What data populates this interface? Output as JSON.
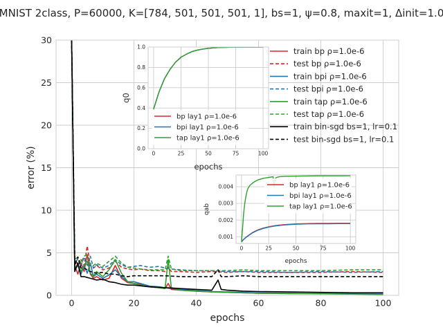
{
  "chart_data": [
    {
      "type": "line",
      "title": "MNIST 2class, P=60000, K=[784, 501, 501, 501, 1], bs=1, ψ=0.8, maxit=1, Δinit=1.0",
      "xlabel": "epochs",
      "ylabel": "error (%)",
      "xlim": [
        -5,
        105
      ],
      "ylim": [
        0,
        30
      ],
      "xticks": [
        "0",
        "20",
        "40",
        "60",
        "80",
        "100"
      ],
      "yticks": [
        "0",
        "5",
        "10",
        "15",
        "20",
        "25",
        "30"
      ],
      "grid": true,
      "legend": "top-right",
      "series": [
        {
          "name": "train bp ρ=1.0e-6",
          "color": "#d62728",
          "dash": "solid",
          "x": [
            0,
            1,
            2,
            3,
            4,
            5,
            6,
            7,
            8,
            10,
            12,
            14,
            16,
            18,
            20,
            22,
            25,
            28,
            30,
            31,
            32,
            35,
            40,
            45,
            50,
            55,
            60,
            70,
            80,
            90,
            100
          ],
          "y": [
            30,
            3.5,
            2.5,
            3.8,
            2.8,
            4.8,
            2.5,
            2.0,
            2.2,
            1.8,
            2.0,
            3.5,
            2.0,
            1.5,
            1.4,
            1.3,
            1.0,
            0.9,
            0.8,
            1.4,
            0.7,
            0.6,
            0.5,
            0.4,
            0.35,
            0.3,
            0.25,
            0.2,
            0.2,
            0.15,
            0.15
          ]
        },
        {
          "name": "test bp ρ=1.0e-6",
          "color": "#d62728",
          "dash": "dashed",
          "x": [
            0,
            1,
            2,
            3,
            4,
            5,
            6,
            7,
            8,
            10,
            12,
            14,
            16,
            18,
            20,
            22,
            25,
            28,
            30,
            31,
            32,
            35,
            40,
            45,
            50,
            55,
            60,
            70,
            80,
            90,
            100
          ],
          "y": [
            30,
            4.5,
            3.5,
            4.2,
            3.5,
            5.8,
            3.5,
            3.2,
            3.5,
            3.0,
            3.2,
            4.0,
            3.3,
            3.1,
            3.0,
            3.1,
            2.9,
            2.9,
            2.8,
            3.3,
            2.8,
            2.8,
            2.7,
            2.8,
            2.7,
            2.8,
            2.7,
            2.7,
            2.7,
            2.8,
            2.7
          ]
        },
        {
          "name": "train bpi ρ=1.0e-6",
          "color": "#1f77b4",
          "dash": "solid",
          "x": [
            0,
            1,
            2,
            3,
            4,
            5,
            6,
            7,
            8,
            10,
            12,
            14,
            16,
            18,
            20,
            22,
            25,
            28,
            30,
            32,
            35,
            40,
            45,
            50,
            55,
            60,
            70,
            80,
            90,
            100
          ],
          "y": [
            30,
            3.0,
            3.5,
            2.5,
            3.5,
            2.6,
            3.8,
            2.2,
            2.5,
            2.0,
            2.4,
            3.0,
            2.2,
            1.6,
            1.6,
            1.4,
            1.1,
            1.0,
            0.9,
            0.8,
            0.7,
            0.55,
            0.45,
            0.4,
            0.35,
            0.3,
            0.25,
            0.2,
            0.18,
            0.15
          ]
        },
        {
          "name": "test bpi ρ=1.0e-6",
          "color": "#1f77b4",
          "dash": "dashed",
          "x": [
            0,
            1,
            2,
            3,
            4,
            5,
            6,
            7,
            8,
            10,
            12,
            14,
            16,
            18,
            20,
            22,
            25,
            28,
            30,
            32,
            35,
            40,
            45,
            50,
            55,
            60,
            70,
            80,
            90,
            100
          ],
          "y": [
            30,
            4.0,
            4.2,
            3.4,
            4.5,
            3.5,
            4.6,
            3.2,
            3.6,
            3.2,
            3.5,
            4.2,
            3.6,
            3.3,
            3.4,
            3.5,
            3.3,
            3.4,
            3.2,
            3.1,
            3.0,
            2.9,
            2.9,
            2.8,
            2.8,
            2.8,
            2.7,
            2.8,
            2.7,
            2.8
          ]
        },
        {
          "name": "train tap ρ=1.0e-6",
          "color": "#2ca02c",
          "dash": "solid",
          "x": [
            0,
            1,
            2,
            3,
            4,
            5,
            6,
            7,
            8,
            10,
            12,
            14,
            16,
            18,
            20,
            22,
            25,
            28,
            30,
            31,
            32,
            35,
            40,
            45,
            50,
            55,
            60,
            70,
            80,
            90,
            100
          ],
          "y": [
            30,
            3.2,
            3.6,
            2.8,
            3.6,
            4.0,
            2.6,
            2.3,
            2.8,
            2.2,
            3.0,
            4.2,
            2.6,
            1.6,
            1.4,
            1.2,
            1.0,
            0.9,
            0.8,
            4.2,
            0.9,
            0.6,
            0.5,
            0.4,
            0.35,
            0.3,
            0.25,
            0.2,
            0.18,
            0.15,
            0.1
          ]
        },
        {
          "name": "test tap ρ=1.0e-6",
          "color": "#2ca02c",
          "dash": "dashed",
          "x": [
            0,
            1,
            2,
            3,
            4,
            5,
            6,
            7,
            8,
            10,
            12,
            14,
            16,
            18,
            20,
            22,
            25,
            28,
            30,
            31,
            32,
            35,
            40,
            45,
            50,
            55,
            60,
            70,
            80,
            90,
            100
          ],
          "y": [
            30,
            4.2,
            4.5,
            3.8,
            4.6,
            4.8,
            3.6,
            3.5,
            3.8,
            3.4,
            4.0,
            4.6,
            3.8,
            3.3,
            3.2,
            3.1,
            3.0,
            3.0,
            3.0,
            4.6,
            3.1,
            2.9,
            2.9,
            2.9,
            2.9,
            3.0,
            2.9,
            2.9,
            2.9,
            3.0,
            3.0
          ]
        },
        {
          "name": "train bin-sgd bs=1, lr=0.1",
          "color": "#000000",
          "dash": "solid",
          "x": [
            0,
            1,
            2,
            3,
            4,
            5,
            6,
            8,
            10,
            12,
            14,
            16,
            18,
            20,
            25,
            30,
            35,
            40,
            45,
            47,
            48,
            50,
            55,
            60,
            70,
            80,
            90,
            100
          ],
          "y": [
            30,
            2.8,
            3.8,
            2.2,
            2.2,
            2.1,
            2.0,
            1.8,
            1.9,
            1.6,
            1.5,
            1.3,
            1.2,
            1.2,
            1.0,
            0.9,
            0.8,
            0.7,
            0.6,
            1.8,
            0.7,
            0.6,
            0.5,
            0.45,
            0.4,
            0.35,
            0.3,
            0.3
          ]
        },
        {
          "name": "test bin-sgd bs=1, lr=0.1",
          "color": "#000000",
          "dash": "dashed",
          "x": [
            0,
            1,
            2,
            3,
            4,
            5,
            6,
            8,
            10,
            12,
            14,
            16,
            18,
            20,
            25,
            30,
            35,
            40,
            45,
            47,
            48,
            50,
            55,
            60,
            70,
            80,
            90,
            100
          ],
          "y": [
            30,
            3.5,
            4.5,
            3.2,
            3.2,
            3.0,
            2.8,
            2.6,
            2.7,
            2.5,
            2.5,
            2.3,
            2.2,
            2.3,
            2.3,
            2.3,
            2.2,
            2.2,
            2.2,
            3.0,
            2.2,
            2.2,
            2.3,
            2.2,
            2.2,
            2.2,
            2.2,
            2.2
          ]
        }
      ]
    },
    {
      "type": "line",
      "xlabel": "epochs",
      "ylabel": "q0",
      "xlim": [
        -5,
        105
      ],
      "ylim": [
        0,
        1.0
      ],
      "xticks": [
        "0",
        "25",
        "50",
        "75",
        "100"
      ],
      "yticks": [
        "0.0",
        "0.2",
        "0.4",
        "0.6",
        "0.8",
        "1.0"
      ],
      "grid": true,
      "legend": "lower-left",
      "series": [
        {
          "name": "bp lay1 ρ=1.0e-6",
          "color": "#d62728",
          "x": [
            0,
            5,
            10,
            15,
            20,
            25,
            30,
            35,
            40,
            45,
            50,
            55,
            60,
            70,
            80,
            90,
            100
          ],
          "y": [
            0.39,
            0.56,
            0.69,
            0.78,
            0.85,
            0.9,
            0.93,
            0.955,
            0.97,
            0.98,
            0.988,
            0.992,
            0.995,
            0.998,
            0.999,
            1.0,
            1.0
          ]
        },
        {
          "name": "bpi lay1 ρ=1.0e-6",
          "color": "#1f77b4",
          "x": [
            0,
            5,
            10,
            15,
            20,
            25,
            30,
            35,
            40,
            45,
            50,
            55,
            60,
            70,
            80,
            90,
            100
          ],
          "y": [
            0.39,
            0.56,
            0.69,
            0.78,
            0.85,
            0.9,
            0.93,
            0.955,
            0.97,
            0.98,
            0.988,
            0.992,
            0.995,
            0.998,
            0.999,
            1.0,
            1.0
          ]
        },
        {
          "name": "tap lay1 ρ=1.0e-6",
          "color": "#2ca02c",
          "x": [
            0,
            5,
            10,
            15,
            20,
            25,
            30,
            35,
            40,
            45,
            50,
            55,
            60,
            70,
            80,
            90,
            100
          ],
          "y": [
            0.39,
            0.56,
            0.69,
            0.78,
            0.85,
            0.9,
            0.93,
            0.955,
            0.97,
            0.98,
            0.988,
            0.992,
            0.995,
            0.998,
            0.999,
            1.0,
            1.0
          ]
        }
      ]
    },
    {
      "type": "line",
      "xlabel": "epochs",
      "ylabel": "qab",
      "xlim": [
        -5,
        105
      ],
      "ylim": [
        0.0006,
        0.0047
      ],
      "xticks": [
        "0",
        "25",
        "50",
        "75",
        "100"
      ],
      "yticks": [
        "0.001",
        "0.002",
        "0.003",
        "0.004"
      ],
      "grid": true,
      "legend": "top-right",
      "series": [
        {
          "name": "bp lay1 ρ=1.0e-6",
          "color": "#d62728",
          "x": [
            0,
            2,
            5,
            10,
            15,
            20,
            25,
            30,
            35,
            40,
            50,
            60,
            70,
            80,
            90,
            100
          ],
          "y": [
            0.0007,
            0.00085,
            0.00102,
            0.00125,
            0.00141,
            0.00152,
            0.0016,
            0.00166,
            0.0017,
            0.00173,
            0.00177,
            0.00179,
            0.0018,
            0.0018,
            0.00181,
            0.00181
          ]
        },
        {
          "name": "bpi lay1 ρ=1.0e-6",
          "color": "#1f77b4",
          "x": [
            0,
            2,
            5,
            10,
            15,
            20,
            25,
            30,
            35,
            40,
            50,
            60,
            70,
            80,
            90,
            100
          ],
          "y": [
            0.0007,
            0.00084,
            0.001,
            0.00123,
            0.00139,
            0.0015,
            0.00158,
            0.00164,
            0.00168,
            0.00171,
            0.00175,
            0.00177,
            0.00178,
            0.00178,
            0.00179,
            0.00179
          ]
        },
        {
          "name": "tap lay1 ρ=1.0e-6",
          "color": "#2ca02c",
          "x": [
            0,
            1,
            2,
            3,
            4,
            5,
            6,
            8,
            10,
            12,
            15,
            20,
            25,
            29,
            30,
            31,
            32,
            35,
            40,
            50,
            60,
            70,
            80,
            90,
            100
          ],
          "y": [
            0.0007,
            0.0015,
            0.0024,
            0.003,
            0.0034,
            0.0037,
            0.0039,
            0.0041,
            0.0042,
            0.0043,
            0.0044,
            0.0045,
            0.00455,
            0.0046,
            0.004,
            0.00445,
            0.00455,
            0.0046,
            0.00462,
            0.00463,
            0.00464,
            0.00465,
            0.00465,
            0.00465,
            0.00466
          ]
        }
      ]
    }
  ]
}
